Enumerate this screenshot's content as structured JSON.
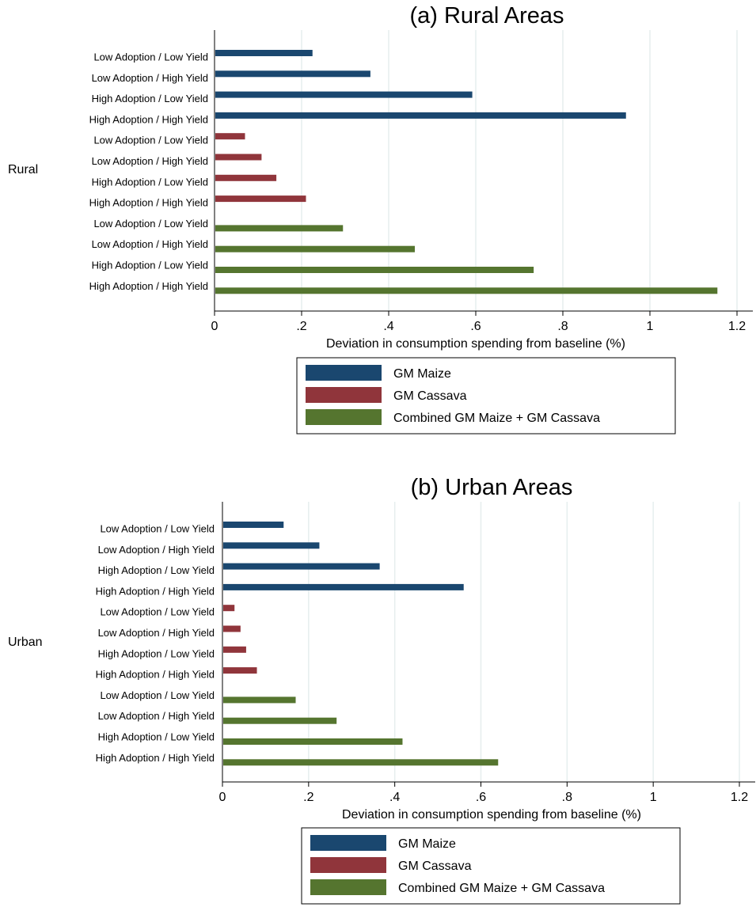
{
  "colors": {
    "gm_maize": "#1a476f",
    "gm_cassava": "#90353b",
    "combined": "#55752f",
    "grid": "#e6eeee"
  },
  "chart_data": [
    {
      "type": "bar",
      "orientation": "horizontal",
      "title": "(a) Rural Areas",
      "group_label": "Rural",
      "xlabel": "Deviation in consumption spending from baseline (%)",
      "xlim": [
        0,
        1.2
      ],
      "x_ticks": [
        0,
        0.2,
        0.4,
        0.6,
        0.8,
        1,
        1.2
      ],
      "x_tick_labels": [
        "0",
        ".2",
        ".4",
        ".6",
        ".8",
        "1",
        "1.2"
      ],
      "grid": true,
      "legend_placement": "bottom",
      "series": [
        {
          "name": "GM Maize",
          "color_key": "gm_maize",
          "categories": [
            "Low Adoption / Low Yield",
            "Low Adoption / High Yield",
            "High Adoption / Low Yield",
            "High Adoption / High Yield"
          ],
          "values": [
            0.225,
            0.358,
            0.592,
            0.945
          ]
        },
        {
          "name": "GM Cassava",
          "color_key": "gm_cassava",
          "categories": [
            "Low Adoption / Low Yield",
            "Low Adoption / High Yield",
            "High Adoption / Low Yield",
            "High Adoption / High Yield"
          ],
          "values": [
            0.07,
            0.108,
            0.142,
            0.21
          ]
        },
        {
          "name": "Combined GM Maize + GM Cassava",
          "color_key": "combined",
          "categories": [
            "Low Adoption / Low Yield",
            "Low Adoption / High Yield",
            "High Adoption / Low Yield",
            "High Adoption / High Yield"
          ],
          "values": [
            0.295,
            0.46,
            0.733,
            1.155
          ]
        }
      ]
    },
    {
      "type": "bar",
      "orientation": "horizontal",
      "title": "(b) Urban Areas",
      "group_label": "Urban",
      "xlabel": "Deviation in consumption spending from baseline (%)",
      "xlim": [
        0,
        1.2
      ],
      "x_ticks": [
        0,
        0.2,
        0.4,
        0.6,
        0.8,
        1,
        1.2
      ],
      "x_tick_labels": [
        "0",
        ".2",
        ".4",
        ".6",
        ".8",
        "1",
        "1.2"
      ],
      "grid": true,
      "legend_placement": "bottom",
      "series": [
        {
          "name": "GM Maize",
          "color_key": "gm_maize",
          "categories": [
            "Low Adoption / Low Yield",
            "Low Adoption / High Yield",
            "High Adoption / Low Yield",
            "High Adoption / High Yield"
          ],
          "values": [
            0.142,
            0.225,
            0.365,
            0.56
          ]
        },
        {
          "name": "GM Cassava",
          "color_key": "gm_cassava",
          "categories": [
            "Low Adoption / Low Yield",
            "Low Adoption / High Yield",
            "High Adoption / Low Yield",
            "High Adoption / High Yield"
          ],
          "values": [
            0.028,
            0.042,
            0.055,
            0.08
          ]
        },
        {
          "name": "Combined GM Maize + GM Cassava",
          "color_key": "combined",
          "categories": [
            "Low Adoption / Low Yield",
            "Low Adoption / High Yield",
            "High Adoption / Low Yield",
            "High Adoption / High Yield"
          ],
          "values": [
            0.17,
            0.265,
            0.418,
            0.64
          ]
        }
      ]
    }
  ]
}
